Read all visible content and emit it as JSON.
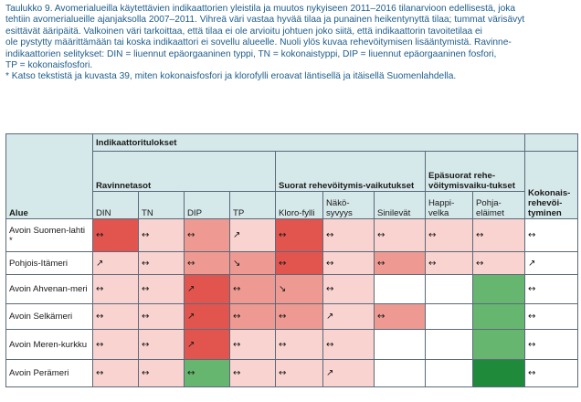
{
  "caption": {
    "lines": [
      "Taulukko 9. Avomerialueilla käytettävien indikaattorien yleistila ja muutos nykyiseen 2011–2016 tilanarvioon edellisestä, joka",
      "tehtiin avomerialueille ajanjaksolla 2007–2011. Vihreä väri vastaa hyvää tilaa ja punainen heikentynyttä tilaa; tummat värisävyt",
      "esittävät ääripäitä. Valkoinen väri tarkoittaa, että tilaa ei ole arvioitu johtuen joko siitä, että indikaattorin tavoitetilaa ei",
      "ole pystytty määrittämään tai koska indikaattori ei sovellu alueelle. Nuoli ylös kuvaa rehevöitymisen lisääntymistä. Ravinne-",
      "indikaattorien selitykset: DIN = liuennut epäorgaaninen typpi, TN = kokonaistyppi, DIP = liuennut epäorgaaninen fosfori,",
      "TP = kokonaisfosfori.",
      "* Katso tekstistä ja kuvasta 39, miten kokonaisfosfori ja klorofylli eroavat läntisellä ja itäisellä Suomenlahdella."
    ]
  },
  "table": {
    "group_header": "Indikaattoritulokset",
    "area_header": "Alue",
    "total_header": "Kokonais-rehevöi-tyminen",
    "subgroups": {
      "nutrients": "Ravinnetasot",
      "direct": "Suorat rehevöitymis-vaikutukset",
      "indirect": "Epäsuorat rehe-vöitymisvaiku-tukset"
    },
    "columns": [
      "DIN",
      "TN",
      "DIP",
      "TP",
      "Kloro-fylli",
      "Näkö-syvyys",
      "Sinilevät",
      "Happi-velka",
      "Pohja-eläimet"
    ],
    "colors": {
      "w": "#ffffff",
      "l": "#f9d3d0",
      "m": "#ee9a92",
      "d": "#e2554f",
      "g": "#67b670",
      "dg": "#1f8b3a"
    },
    "rows": [
      {
        "area": "Avoin Suomen-lahti *",
        "cells": [
          {
            "a": "↔",
            "c": "d"
          },
          {
            "a": "↔",
            "c": "l"
          },
          {
            "a": "↔",
            "c": "m"
          },
          {
            "a": "↗",
            "c": "l"
          },
          {
            "a": "↔",
            "c": "d"
          },
          {
            "a": "↔",
            "c": "l"
          },
          {
            "a": "↔",
            "c": "l"
          },
          {
            "a": "↔",
            "c": "l"
          },
          {
            "a": "↔",
            "c": "l"
          }
        ],
        "total": "↔"
      },
      {
        "area": "Pohjois-Itämeri",
        "cells": [
          {
            "a": "↗",
            "c": "l"
          },
          {
            "a": "↔",
            "c": "l"
          },
          {
            "a": "↔",
            "c": "m"
          },
          {
            "a": "↘",
            "c": "m"
          },
          {
            "a": "↔",
            "c": "d"
          },
          {
            "a": "↔",
            "c": "l"
          },
          {
            "a": "↔",
            "c": "m"
          },
          {
            "a": "↔",
            "c": "l"
          },
          {
            "a": "↔",
            "c": "l"
          }
        ],
        "total": "↗"
      },
      {
        "area": "Avoin Ahvenan-meri",
        "cells": [
          {
            "a": "↔",
            "c": "l"
          },
          {
            "a": "↔",
            "c": "l"
          },
          {
            "a": "↗",
            "c": "d"
          },
          {
            "a": "↔",
            "c": "m"
          },
          {
            "a": "↘",
            "c": "m"
          },
          {
            "a": "↔",
            "c": "l"
          },
          {
            "a": "",
            "c": "w"
          },
          {
            "a": "",
            "c": "w"
          },
          {
            "a": "",
            "c": "g"
          }
        ],
        "total": "↔"
      },
      {
        "area": "Avoin Selkämeri",
        "cells": [
          {
            "a": "↔",
            "c": "l"
          },
          {
            "a": "↔",
            "c": "l"
          },
          {
            "a": "↗",
            "c": "d"
          },
          {
            "a": "↔",
            "c": "m"
          },
          {
            "a": "↔",
            "c": "m"
          },
          {
            "a": "↗",
            "c": "l"
          },
          {
            "a": "↔",
            "c": "m"
          },
          {
            "a": "",
            "c": "w"
          },
          {
            "a": "",
            "c": "g"
          }
        ],
        "total": "↔"
      },
      {
        "area": "Avoin Meren-kurkku",
        "cells": [
          {
            "a": "↔",
            "c": "l"
          },
          {
            "a": "↔",
            "c": "l"
          },
          {
            "a": "↗",
            "c": "d"
          },
          {
            "a": "↔",
            "c": "l"
          },
          {
            "a": "↔",
            "c": "l"
          },
          {
            "a": "↔",
            "c": "l"
          },
          {
            "a": "",
            "c": "w"
          },
          {
            "a": "",
            "c": "w"
          },
          {
            "a": "",
            "c": "g"
          }
        ],
        "total": "↔"
      },
      {
        "area": "Avoin Perämeri",
        "cells": [
          {
            "a": "↔",
            "c": "l"
          },
          {
            "a": "↔",
            "c": "l"
          },
          {
            "a": "↔",
            "c": "g"
          },
          {
            "a": "↔",
            "c": "l"
          },
          {
            "a": "↔",
            "c": "l"
          },
          {
            "a": "↗",
            "c": "l"
          },
          {
            "a": "",
            "c": "w"
          },
          {
            "a": "",
            "c": "w"
          },
          {
            "a": "",
            "c": "dg"
          }
        ],
        "total": "↔"
      }
    ]
  }
}
